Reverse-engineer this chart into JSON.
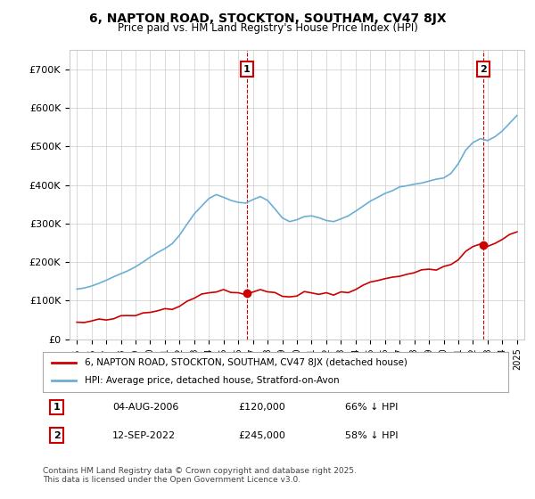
{
  "title": "6, NAPTON ROAD, STOCKTON, SOUTHAM, CV47 8JX",
  "subtitle": "Price paid vs. HM Land Registry's House Price Index (HPI)",
  "hpi_color": "#6baed6",
  "price_color": "#cc0000",
  "annotation_color": "#cc0000",
  "vline_color": "#cc0000",
  "background_color": "#ffffff",
  "grid_color": "#cccccc",
  "ylim": [
    0,
    750000
  ],
  "yticks": [
    0,
    100000,
    200000,
    300000,
    400000,
    500000,
    600000,
    700000
  ],
  "ytick_labels": [
    "£0",
    "£100K",
    "£200K",
    "£300K",
    "£400K",
    "£500K",
    "£600K",
    "£700K"
  ],
  "transaction1": {
    "date_num": 2006.59,
    "price": 120000,
    "label": "1",
    "date_str": "04-AUG-2006",
    "price_str": "£120,000",
    "pct_str": "66% ↓ HPI"
  },
  "transaction2": {
    "date_num": 2022.71,
    "price": 245000,
    "label": "2",
    "date_str": "12-SEP-2022",
    "price_str": "£245,000",
    "pct_str": "58% ↓ HPI"
  },
  "legend_label_price": "6, NAPTON ROAD, STOCKTON, SOUTHAM, CV47 8JX (detached house)",
  "legend_label_hpi": "HPI: Average price, detached house, Stratford-on-Avon",
  "footnote": "Contains HM Land Registry data © Crown copyright and database right 2025.\nThis data is licensed under the Open Government Licence v3.0.",
  "table_rows": [
    {
      "num": "1",
      "date": "04-AUG-2006",
      "price": "£120,000",
      "pct": "66% ↓ HPI"
    },
    {
      "num": "2",
      "date": "12-SEP-2022",
      "price": "£245,000",
      "pct": "58% ↓ HPI"
    }
  ]
}
